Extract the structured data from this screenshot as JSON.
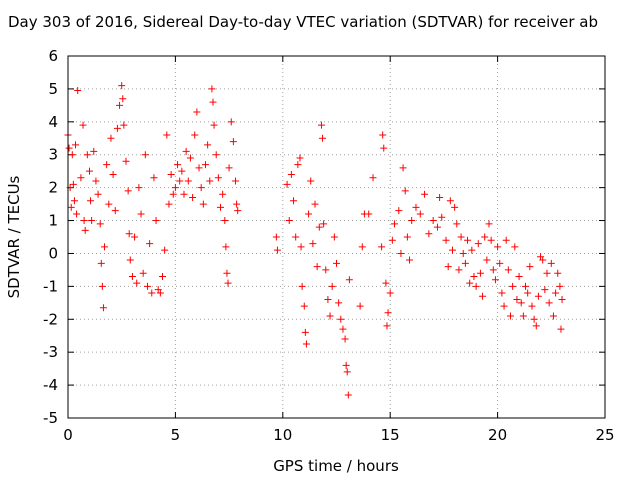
{
  "chart_data": {
    "type": "scatter",
    "title": "Day 303 of 2016, Sidereal Day-to-day VTEC variation (SDTVAR) for receiver ab",
    "xlabel": "GPS time / hours",
    "ylabel": "SDTVAR / TECUs",
    "xlim": [
      0,
      25
    ],
    "ylim": [
      -5,
      6
    ],
    "xticks": [
      "0",
      "5",
      "10",
      "15",
      "20",
      "25"
    ],
    "yticks": [
      "-5",
      "-4",
      "-3",
      "-2",
      "-1",
      "0",
      "1",
      "2",
      "3",
      "4",
      "5",
      "6"
    ],
    "grid": true,
    "marker": "plus",
    "color": "#ff0000",
    "series": [
      {
        "points": [
          [
            0.0,
            3.6
          ],
          [
            0.05,
            3.2
          ],
          [
            0.1,
            2.0
          ],
          [
            0.15,
            1.4
          ],
          [
            0.2,
            3.0
          ],
          [
            0.25,
            2.1
          ],
          [
            0.3,
            1.6
          ],
          [
            0.35,
            3.3
          ],
          [
            0.4,
            1.2
          ],
          [
            0.45,
            4.95
          ],
          [
            0.6,
            2.3
          ],
          [
            0.7,
            3.9
          ],
          [
            0.75,
            1.0
          ],
          [
            0.8,
            0.7
          ],
          [
            0.9,
            3.0
          ],
          [
            1.0,
            2.5
          ],
          [
            1.05,
            1.6
          ],
          [
            1.1,
            1.0
          ],
          [
            1.2,
            3.1
          ],
          [
            1.3,
            2.2
          ],
          [
            1.4,
            1.8
          ],
          [
            1.5,
            0.9
          ],
          [
            1.55,
            -0.3
          ],
          [
            1.6,
            -1.0
          ],
          [
            1.65,
            -1.65
          ],
          [
            1.7,
            0.2
          ],
          [
            1.8,
            2.7
          ],
          [
            1.9,
            1.5
          ],
          [
            2.0,
            3.5
          ],
          [
            2.1,
            2.4
          ],
          [
            2.2,
            1.3
          ],
          [
            2.3,
            3.8
          ],
          [
            2.4,
            4.5
          ],
          [
            2.5,
            5.1
          ],
          [
            2.55,
            4.7
          ],
          [
            2.6,
            3.9
          ],
          [
            2.7,
            2.8
          ],
          [
            2.8,
            1.9
          ],
          [
            2.85,
            0.6
          ],
          [
            2.9,
            -0.2
          ],
          [
            3.0,
            -0.7
          ],
          [
            3.1,
            0.5
          ],
          [
            3.2,
            -0.9
          ],
          [
            3.3,
            2.0
          ],
          [
            3.4,
            1.2
          ],
          [
            3.5,
            -0.6
          ],
          [
            3.6,
            3.0
          ],
          [
            3.7,
            -1.0
          ],
          [
            3.8,
            0.3
          ],
          [
            3.9,
            -1.2
          ],
          [
            4.0,
            2.3
          ],
          [
            4.1,
            1.0
          ],
          [
            4.2,
            -1.1
          ],
          [
            4.3,
            -1.2
          ],
          [
            4.4,
            -0.7
          ],
          [
            4.5,
            0.1
          ],
          [
            4.6,
            3.6
          ],
          [
            4.7,
            1.5
          ],
          [
            4.8,
            2.4
          ],
          [
            4.9,
            1.8
          ],
          [
            5.0,
            2.0
          ],
          [
            5.1,
            2.7
          ],
          [
            5.2,
            2.2
          ],
          [
            5.3,
            2.5
          ],
          [
            5.4,
            1.8
          ],
          [
            5.5,
            3.1
          ],
          [
            5.6,
            2.2
          ],
          [
            5.7,
            2.9
          ],
          [
            5.8,
            1.7
          ],
          [
            5.9,
            3.6
          ],
          [
            6.0,
            4.3
          ],
          [
            6.1,
            2.6
          ],
          [
            6.2,
            2.0
          ],
          [
            6.3,
            1.5
          ],
          [
            6.4,
            2.7
          ],
          [
            6.5,
            3.3
          ],
          [
            6.6,
            2.2
          ],
          [
            6.7,
            5.0
          ],
          [
            6.75,
            4.6
          ],
          [
            6.8,
            3.9
          ],
          [
            6.9,
            3.0
          ],
          [
            7.0,
            2.3
          ],
          [
            7.1,
            1.4
          ],
          [
            7.2,
            1.8
          ],
          [
            7.3,
            1.0
          ],
          [
            7.35,
            0.2
          ],
          [
            7.4,
            -0.6
          ],
          [
            7.45,
            -0.9
          ],
          [
            7.5,
            2.6
          ],
          [
            7.6,
            4.0
          ],
          [
            7.7,
            3.4
          ],
          [
            7.8,
            2.2
          ],
          [
            7.85,
            1.5
          ],
          [
            7.9,
            1.3
          ],
          [
            9.7,
            0.5
          ],
          [
            9.75,
            0.1
          ],
          [
            10.2,
            2.1
          ],
          [
            10.3,
            1.0
          ],
          [
            10.4,
            2.4
          ],
          [
            10.5,
            1.6
          ],
          [
            10.6,
            0.5
          ],
          [
            10.7,
            2.7
          ],
          [
            10.8,
            2.9
          ],
          [
            10.85,
            0.2
          ],
          [
            10.9,
            -1.0
          ],
          [
            11.0,
            -1.6
          ],
          [
            11.05,
            -2.4
          ],
          [
            11.1,
            -2.75
          ],
          [
            11.2,
            1.2
          ],
          [
            11.3,
            2.2
          ],
          [
            11.4,
            0.3
          ],
          [
            11.5,
            1.5
          ],
          [
            11.6,
            -0.4
          ],
          [
            11.7,
            0.8
          ],
          [
            11.8,
            3.9
          ],
          [
            11.85,
            3.5
          ],
          [
            11.9,
            0.9
          ],
          [
            12.0,
            -0.5
          ],
          [
            12.1,
            -1.4
          ],
          [
            12.2,
            -1.9
          ],
          [
            12.3,
            -1.0
          ],
          [
            12.4,
            0.5
          ],
          [
            12.5,
            -0.3
          ],
          [
            12.6,
            -1.5
          ],
          [
            12.7,
            -2.0
          ],
          [
            12.8,
            -2.3
          ],
          [
            12.9,
            -2.6
          ],
          [
            12.95,
            -3.4
          ],
          [
            13.0,
            -3.6
          ],
          [
            13.05,
            -4.3
          ],
          [
            13.1,
            -0.8
          ],
          [
            13.6,
            -1.6
          ],
          [
            13.7,
            0.2
          ],
          [
            13.8,
            1.2
          ],
          [
            14.0,
            1.2
          ],
          [
            14.2,
            2.3
          ],
          [
            14.6,
            0.2
          ],
          [
            14.65,
            3.6
          ],
          [
            14.7,
            3.2
          ],
          [
            14.8,
            -0.9
          ],
          [
            14.85,
            -2.2
          ],
          [
            14.9,
            -1.8
          ],
          [
            15.0,
            -1.2
          ],
          [
            15.1,
            0.4
          ],
          [
            15.2,
            0.9
          ],
          [
            15.4,
            1.3
          ],
          [
            15.5,
            0.0
          ],
          [
            15.6,
            2.6
          ],
          [
            15.7,
            1.9
          ],
          [
            15.8,
            0.5
          ],
          [
            15.9,
            -0.2
          ],
          [
            16.0,
            1.0
          ],
          [
            16.2,
            1.4
          ],
          [
            16.4,
            1.2
          ],
          [
            16.6,
            1.8
          ],
          [
            16.8,
            0.6
          ],
          [
            17.0,
            1.0
          ],
          [
            17.2,
            0.8
          ],
          [
            17.3,
            1.7
          ],
          [
            17.4,
            1.1
          ],
          [
            17.6,
            0.4
          ],
          [
            17.7,
            -0.4
          ],
          [
            17.8,
            1.6
          ],
          [
            17.9,
            0.1
          ],
          [
            18.0,
            1.4
          ],
          [
            18.1,
            0.9
          ],
          [
            18.2,
            -0.5
          ],
          [
            18.3,
            0.5
          ],
          [
            18.4,
            0.0
          ],
          [
            18.5,
            -0.3
          ],
          [
            18.6,
            0.4
          ],
          [
            18.7,
            -0.9
          ],
          [
            18.8,
            0.1
          ],
          [
            18.9,
            -0.7
          ],
          [
            19.0,
            -1.0
          ],
          [
            19.1,
            0.3
          ],
          [
            19.2,
            -0.6
          ],
          [
            19.3,
            -1.3
          ],
          [
            19.4,
            0.5
          ],
          [
            19.5,
            -0.2
          ],
          [
            19.6,
            0.9
          ],
          [
            19.7,
            0.4
          ],
          [
            19.8,
            -0.5
          ],
          [
            19.9,
            -0.8
          ],
          [
            20.0,
            0.2
          ],
          [
            20.1,
            -0.3
          ],
          [
            20.2,
            -1.2
          ],
          [
            20.3,
            -1.6
          ],
          [
            20.4,
            0.4
          ],
          [
            20.5,
            -0.5
          ],
          [
            20.6,
            -1.9
          ],
          [
            20.7,
            -1.0
          ],
          [
            20.8,
            0.2
          ],
          [
            20.9,
            -1.4
          ],
          [
            21.0,
            -0.7
          ],
          [
            21.1,
            -1.5
          ],
          [
            21.2,
            -1.9
          ],
          [
            21.3,
            -1.0
          ],
          [
            21.4,
            -1.2
          ],
          [
            21.5,
            -0.4
          ],
          [
            21.6,
            -1.6
          ],
          [
            21.7,
            -2.0
          ],
          [
            21.8,
            -2.2
          ],
          [
            21.9,
            -1.3
          ],
          [
            22.0,
            -0.1
          ],
          [
            22.1,
            -0.2
          ],
          [
            22.2,
            -1.1
          ],
          [
            22.3,
            -0.6
          ],
          [
            22.4,
            -1.5
          ],
          [
            22.5,
            -0.3
          ],
          [
            22.6,
            -1.9
          ],
          [
            22.7,
            -1.2
          ],
          [
            22.8,
            -0.6
          ],
          [
            22.9,
            -1.0
          ],
          [
            22.95,
            -2.3
          ],
          [
            23.0,
            -1.4
          ]
        ]
      }
    ]
  }
}
